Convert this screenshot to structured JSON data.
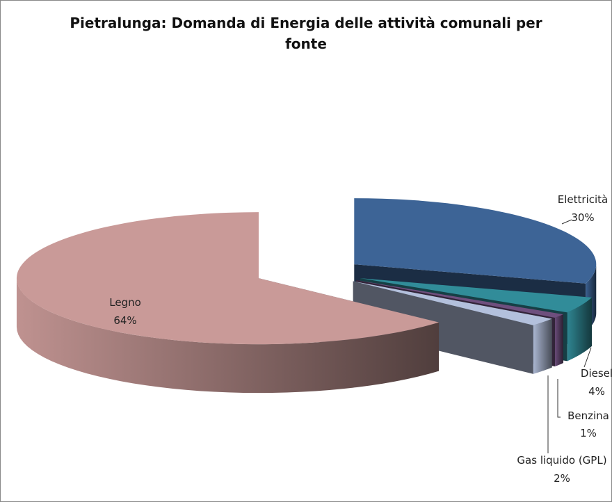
{
  "chart_data": {
    "type": "pie3d",
    "title": "Pietralunga: Domanda di Energia delle attività comunali per fonte",
    "categories": [
      "Elettricità",
      "Diesel",
      "Benzina",
      "Gas liquido (GPL)",
      "Legno"
    ],
    "values": [
      30,
      4,
      1,
      2,
      64
    ],
    "value_labels": [
      "30%",
      "4%",
      "1%",
      "2%",
      "64%"
    ],
    "colors": [
      "#3d6496",
      "#318c99",
      "#6e4f7e",
      "#b3c0dc",
      "#c99a98"
    ]
  }
}
